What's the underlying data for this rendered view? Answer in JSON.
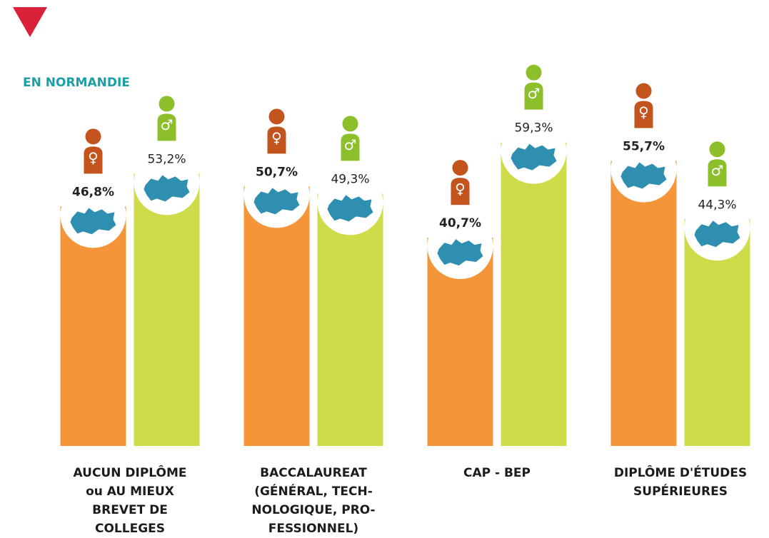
{
  "chart_data": {
    "type": "bar",
    "subtitle": "EN NORMANDIE",
    "categories": [
      "AUCUN DIPLÔME\nou AU MIEUX\nBREVET DE\nCOLLEGES",
      "BACCALAUREAT\n(GÉNÉRAL, TECH-\nNOLOGIQUE, PRO-\nFESSIONNEL)",
      "CAP - BEP",
      "DIPLÔME D'ÉTUDES\nSUPÉRIEURES"
    ],
    "series": [
      {
        "name": "♀",
        "color": "#f5953a",
        "icon_color": "#c3541e",
        "values": [
          46.8,
          50.7,
          40.7,
          55.7
        ],
        "value_labels": [
          "46,8%",
          "50,7%",
          "40,7%",
          "55,7%"
        ]
      },
      {
        "name": "♂",
        "color": "#cddc48",
        "icon_color": "#8cbf2a",
        "values": [
          53.2,
          49.3,
          59.3,
          44.3
        ],
        "value_labels": [
          "53,2%",
          "49,3%",
          "59,3%",
          "44,3%"
        ]
      }
    ],
    "ylim": [
      0,
      87
    ]
  }
}
